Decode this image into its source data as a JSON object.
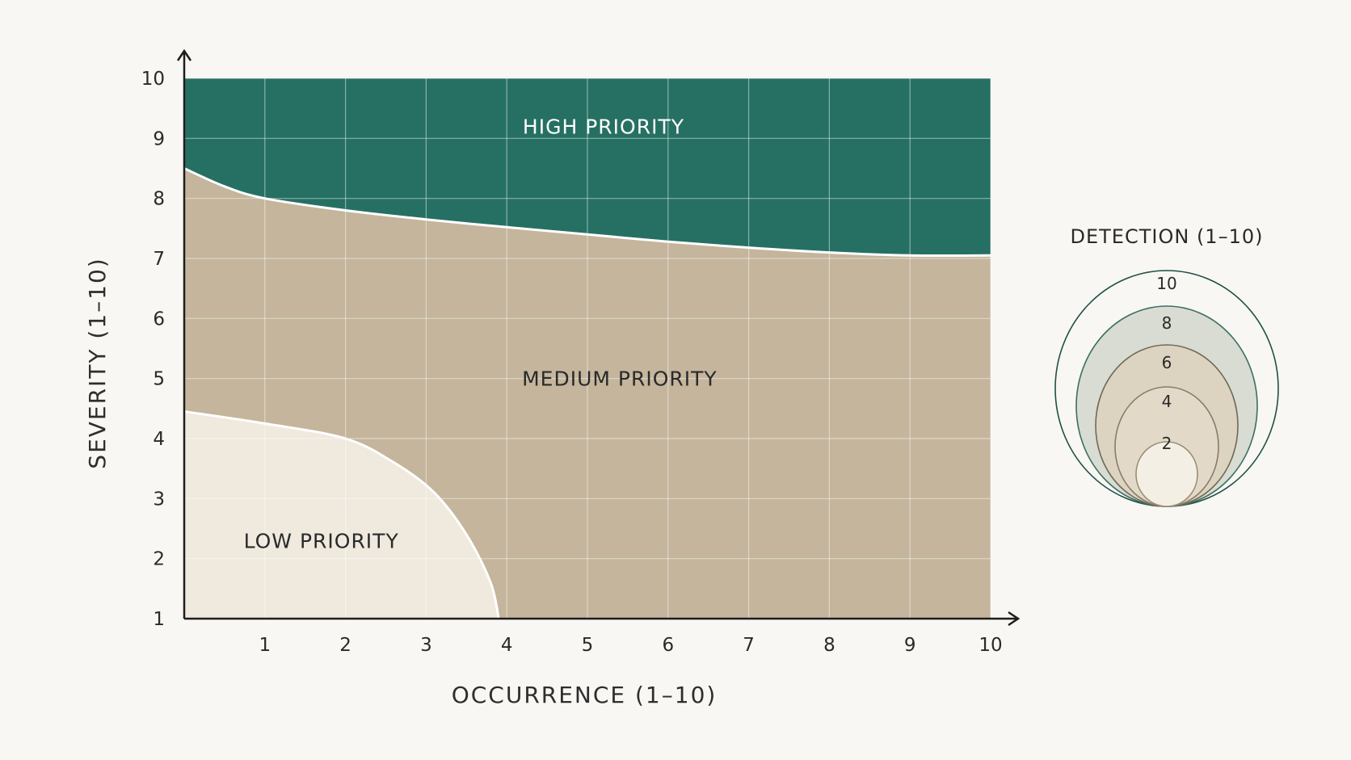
{
  "chart_data": {
    "type": "area",
    "xlabel": "OCCURRENCE (1–10)",
    "ylabel": "SEVERITY (1–10)",
    "xlim": [
      0,
      10
    ],
    "ylim": [
      1,
      10
    ],
    "x_ticks": [
      "1",
      "2",
      "3",
      "4",
      "5",
      "6",
      "7",
      "8",
      "9",
      "10"
    ],
    "y_ticks": [
      "1",
      "2",
      "3",
      "4",
      "5",
      "6",
      "7",
      "8",
      "9",
      "10"
    ],
    "grid": true,
    "regions": [
      {
        "name": "HIGH PRIORITY",
        "color": "#267063",
        "label_pos": [
          5.2,
          9.2
        ],
        "boundary": {
          "x": [
            0,
            0.5,
            1,
            2,
            3,
            4,
            5,
            6,
            7,
            8,
            9,
            10
          ],
          "y": [
            8.5,
            8.2,
            8.0,
            7.8,
            7.65,
            7.52,
            7.4,
            7.28,
            7.18,
            7.1,
            7.05,
            7.05
          ]
        }
      },
      {
        "name": "MEDIUM PRIORITY",
        "color": "#c4b59c",
        "label_pos": [
          5.4,
          5.0
        ]
      },
      {
        "name": "LOW PRIORITY",
        "color": "#efe9de",
        "label_pos": [
          1.7,
          2.3
        ],
        "boundary": {
          "x": [
            0,
            1,
            2,
            2.6,
            3.1,
            3.5,
            3.8,
            3.9
          ],
          "y": [
            4.45,
            4.25,
            4.0,
            3.6,
            3.1,
            2.4,
            1.6,
            1.0
          ]
        }
      }
    ],
    "legend": {
      "title": "DETECTION (1–10)",
      "placement": "right",
      "levels": [
        {
          "value": 10,
          "fill": "#f8f7f3",
          "stroke": "#1f4f46"
        },
        {
          "value": 8,
          "fill": "#d8dcd3",
          "stroke": "#3c6e60"
        },
        {
          "value": 6,
          "fill": "#ddd3c1",
          "stroke": "#6f6a56"
        },
        {
          "value": 4,
          "fill": "#e3d9c8",
          "stroke": "#8a7c66"
        },
        {
          "value": 2,
          "fill": "#f4efe4",
          "stroke": "#9a8c74"
        }
      ]
    }
  },
  "colors": {
    "background": "#f8f7f3",
    "high": "#267063",
    "medium": "#c4b59c",
    "low": "#efe9de",
    "grid": "#ffffff",
    "axis": "#1e1e1e",
    "dark_text": "#2a2a2a",
    "light_text": "#ffffff"
  }
}
